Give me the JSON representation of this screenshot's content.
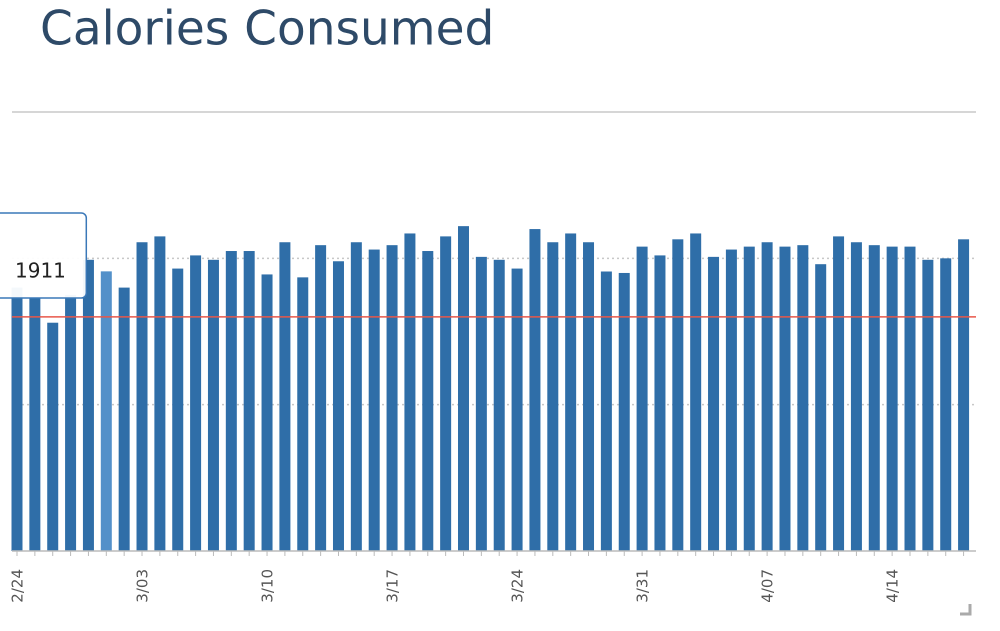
{
  "chart_data": {
    "type": "bar",
    "title": "Calories Consumed",
    "categories": [
      "2/24",
      null,
      null,
      null,
      null,
      null,
      null,
      "3/03",
      null,
      null,
      null,
      null,
      null,
      null,
      "3/10",
      null,
      null,
      null,
      null,
      null,
      null,
      "3/17",
      null,
      null,
      null,
      null,
      null,
      null,
      "3/24",
      null,
      null,
      null,
      null,
      null,
      null,
      "3/31",
      null,
      null,
      null,
      null,
      null,
      null,
      "4/07",
      null,
      null,
      null,
      null,
      null,
      null,
      "4/14",
      null,
      null,
      null,
      null
    ],
    "values": [
      1800,
      1730,
      1560,
      1750,
      1990,
      1911,
      1800,
      2110,
      2150,
      1930,
      2020,
      1990,
      2050,
      2050,
      1890,
      2110,
      1870,
      2090,
      1980,
      2110,
      2060,
      2090,
      2170,
      2050,
      2150,
      2220,
      2010,
      1990,
      1930,
      2200,
      2110,
      2170,
      2110,
      1910,
      1900,
      2080,
      2020,
      2130,
      2170,
      2010,
      2060,
      2080,
      2110,
      2080,
      2090,
      1960,
      2150,
      2110,
      2090,
      2080,
      2080,
      1990,
      2000,
      2130
    ],
    "color": "#2f6ea8",
    "highlight_color": "#5390c9",
    "highlight_index": 5,
    "goal": 1600,
    "goal_color": "#e8574a",
    "ylim": [
      0,
      3000
    ],
    "yticks": [
      1000,
      2000,
      3000
    ],
    "grid": true
  }
}
